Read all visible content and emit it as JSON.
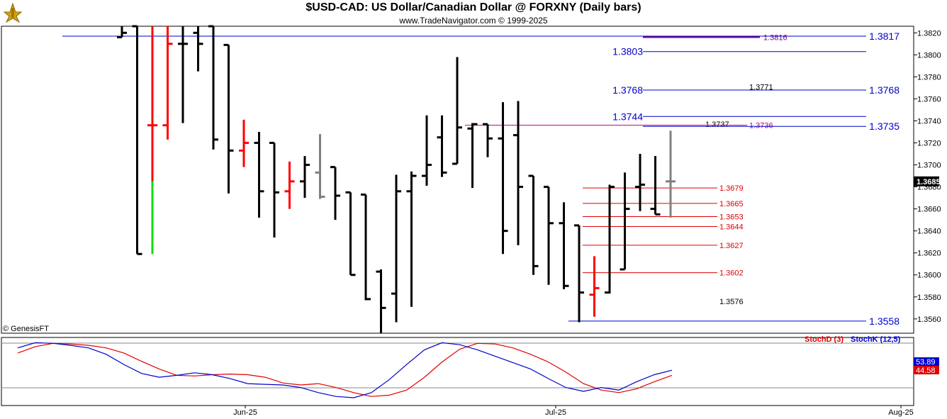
{
  "header": {
    "title": "$USD-CAD:  US Dollar/Canadian Dollar @ FORXNY  (Daily bars)",
    "subtitle": "www.TradeNavigator.com © 1999-2025"
  },
  "footer": {
    "copyright": "© GenesisFT"
  },
  "indicator_labels": {
    "stochd": "StochD (3)",
    "stochk": "StochK (12,5)"
  },
  "colors": {
    "up": "#000000",
    "down": "#ff0000",
    "neutral": "#808080",
    "green": "#00e000",
    "blue": "#0000cc",
    "red": "#e00000",
    "purple": "#800080",
    "magenta": "#c0007a"
  },
  "chart_data": [
    {
      "type": "ohlc",
      "ylim": [
        1.3547,
        1.3826
      ],
      "y_ticks": [
        "1.3820",
        "1.3800",
        "1.3780",
        "1.3760",
        "1.3740",
        "1.3720",
        "1.3700",
        "1.3680",
        "1.3660",
        "1.3640",
        "1.3620",
        "1.3600",
        "1.3580",
        "1.3560"
      ],
      "x_ticks": [
        "Jun-25",
        "Jul-25",
        "Aug-25"
      ],
      "last_price": "1.3685",
      "bars": [
        {
          "o": 1.3816,
          "h": 1.3826,
          "l": 1.3816,
          "c": 1.382,
          "color": "black"
        },
        {
          "o": 1.3826,
          "h": 1.3826,
          "l": 1.3619,
          "c": 1.3619,
          "color": "black"
        },
        {
          "o": 1.3736,
          "h": 1.3826,
          "l": 1.3619,
          "c": 1.3736,
          "color": "red",
          "lower_color": "green",
          "lower_from": 1.3685
        },
        {
          "o": 1.3736,
          "h": 1.3826,
          "l": 1.3723,
          "c": 1.381,
          "color": "red"
        },
        {
          "o": 1.381,
          "h": 1.3826,
          "l": 1.3738,
          "c": 1.381,
          "color": "black"
        },
        {
          "o": 1.382,
          "h": 1.3826,
          "l": 1.3785,
          "c": 1.381,
          "color": "black"
        },
        {
          "o": 1.3826,
          "h": 1.3826,
          "l": 1.3714,
          "c": 1.3723,
          "color": "black"
        },
        {
          "o": 1.3809,
          "h": 1.3809,
          "l": 1.3674,
          "c": 1.3713,
          "color": "black"
        },
        {
          "o": 1.3713,
          "h": 1.3741,
          "l": 1.3698,
          "c": 1.372,
          "color": "red"
        },
        {
          "o": 1.372,
          "h": 1.373,
          "l": 1.3652,
          "c": 1.3676,
          "color": "black"
        },
        {
          "o": 1.372,
          "h": 1.372,
          "l": 1.3634,
          "c": 1.3675,
          "color": "black"
        },
        {
          "o": 1.3676,
          "h": 1.3703,
          "l": 1.366,
          "c": 1.3685,
          "color": "red"
        },
        {
          "o": 1.3685,
          "h": 1.3708,
          "l": 1.367,
          "c": 1.37,
          "color": "black"
        },
        {
          "o": 1.3693,
          "h": 1.3728,
          "l": 1.3669,
          "c": 1.3671,
          "color": "gray"
        },
        {
          "o": 1.3698,
          "h": 1.3698,
          "l": 1.365,
          "c": 1.3672,
          "color": "black"
        },
        {
          "o": 1.3675,
          "h": 1.3675,
          "l": 1.36,
          "c": 1.36,
          "color": "black"
        },
        {
          "o": 1.3673,
          "h": 1.3673,
          "l": 1.3577,
          "c": 1.3578,
          "color": "black"
        },
        {
          "o": 1.3603,
          "h": 1.3605,
          "l": 1.3547,
          "c": 1.357,
          "color": "black"
        },
        {
          "o": 1.3583,
          "h": 1.3691,
          "l": 1.3557,
          "c": 1.3676,
          "color": "black"
        },
        {
          "o": 1.3676,
          "h": 1.3694,
          "l": 1.3571,
          "c": 1.369,
          "color": "black"
        },
        {
          "o": 1.369,
          "h": 1.3745,
          "l": 1.3681,
          "c": 1.37,
          "color": "black"
        },
        {
          "o": 1.3725,
          "h": 1.3745,
          "l": 1.3689,
          "c": 1.3693,
          "color": "black"
        },
        {
          "o": 1.3701,
          "h": 1.3798,
          "l": 1.3701,
          "c": 1.3734,
          "color": "black"
        },
        {
          "o": 1.3733,
          "h": 1.3738,
          "l": 1.3679,
          "c": 1.3737,
          "color": "black"
        },
        {
          "o": 1.3737,
          "h": 1.3737,
          "l": 1.3707,
          "c": 1.3724,
          "color": "black"
        },
        {
          "o": 1.3724,
          "h": 1.3757,
          "l": 1.3619,
          "c": 1.364,
          "color": "black"
        },
        {
          "o": 1.3727,
          "h": 1.3758,
          "l": 1.3627,
          "c": 1.368,
          "color": "black"
        },
        {
          "o": 1.369,
          "h": 1.369,
          "l": 1.36,
          "c": 1.3608,
          "color": "black"
        },
        {
          "o": 1.368,
          "h": 1.368,
          "l": 1.3591,
          "c": 1.3647,
          "color": "black"
        },
        {
          "o": 1.3647,
          "h": 1.3666,
          "l": 1.3587,
          "c": 1.359,
          "color": "black"
        },
        {
          "o": 1.3645,
          "h": 1.3645,
          "l": 1.3557,
          "c": 1.3584,
          "color": "black"
        },
        {
          "o": 1.3582,
          "h": 1.3617,
          "l": 1.3562,
          "c": 1.3588,
          "color": "red"
        },
        {
          "o": 1.3584,
          "h": 1.3682,
          "l": 1.3583,
          "c": 1.368,
          "color": "black"
        },
        {
          "o": 1.3605,
          "h": 1.3693,
          "l": 1.3605,
          "c": 1.366,
          "color": "black"
        },
        {
          "o": 1.368,
          "h": 1.371,
          "l": 1.3658,
          "c": 1.3682,
          "color": "black"
        },
        {
          "o": 1.366,
          "h": 1.3708,
          "l": 1.3655,
          "c": 1.3655,
          "color": "black"
        },
        {
          "o": 1.3685,
          "h": 1.3731,
          "l": 1.3652,
          "c": 1.3685,
          "color": "gray"
        }
      ],
      "levels": [
        {
          "label": "1.3816",
          "value": 1.3816,
          "color": "purple"
        },
        {
          "label": "1.3817",
          "value": 1.3817,
          "color": "blue"
        },
        {
          "label": "1.3803",
          "value": 1.3803,
          "color": "blue"
        },
        {
          "label": "1.3771",
          "value": 1.3771,
          "color": "black"
        },
        {
          "label": "1.3768",
          "value": 1.3768,
          "color": "blue"
        },
        {
          "label": "1.3744",
          "value": 1.3744,
          "color": "blue"
        },
        {
          "label": "1.3737",
          "value": 1.3737,
          "color": "black"
        },
        {
          "label": "1.3736",
          "value": 1.3736,
          "color": "magenta"
        },
        {
          "label": "1.3735",
          "value": 1.3735,
          "color": "blue"
        },
        {
          "label": "1.3679",
          "value": 1.3679,
          "color": "red"
        },
        {
          "label": "1.3665",
          "value": 1.3665,
          "color": "red"
        },
        {
          "label": "1.3653",
          "value": 1.3653,
          "color": "red"
        },
        {
          "label": "1.3644",
          "value": 1.3644,
          "color": "red"
        },
        {
          "label": "1.3627",
          "value": 1.3627,
          "color": "red"
        },
        {
          "label": "1.3602",
          "value": 1.3602,
          "color": "red"
        },
        {
          "label": "1.3576",
          "value": 1.3576,
          "color": "black"
        },
        {
          "label": "1.3558",
          "value": 1.3558,
          "color": "blue"
        }
      ]
    },
    {
      "type": "line",
      "ylim": [
        0,
        100
      ],
      "series": [
        {
          "name": "StochD (3)",
          "color": "red",
          "values": [
            80,
            90,
            95,
            94,
            92,
            88,
            80,
            67,
            55,
            45,
            44,
            46,
            47,
            46,
            42,
            33,
            30,
            32,
            26,
            18,
            12,
            14,
            22,
            42,
            66,
            86,
            95,
            94,
            88,
            78,
            66,
            50,
            32,
            22,
            18,
            24,
            35,
            45
          ]
        },
        {
          "name": "StochK (12,5)",
          "color": "blue",
          "values": [
            88,
            96,
            95,
            92,
            88,
            78,
            62,
            48,
            42,
            45,
            49,
            46,
            40,
            32,
            31,
            30,
            26,
            18,
            12,
            10,
            18,
            38,
            62,
            85,
            96,
            93,
            85,
            75,
            65,
            55,
            40,
            26,
            20,
            26,
            22,
            35,
            46,
            53
          ]
        }
      ],
      "values_shown": [
        "53.89",
        "44.58"
      ]
    }
  ]
}
